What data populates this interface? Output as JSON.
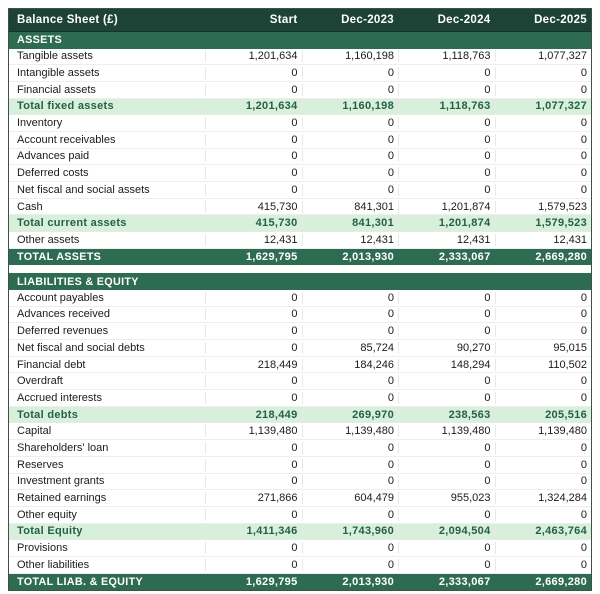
{
  "chart_data": {
    "type": "table",
    "title": "Balance Sheet (£)",
    "columns": [
      "Start",
      "Dec-2023",
      "Dec-2024",
      "Dec-2025"
    ],
    "sections": [
      {
        "label": "ASSETS",
        "rows": [
          {
            "label": "Tangible assets",
            "type": "normal",
            "values": [
              "1,201,634",
              "1,160,198",
              "1,118,763",
              "1,077,327"
            ]
          },
          {
            "label": "Intangible assets",
            "type": "normal",
            "values": [
              "0",
              "0",
              "0",
              "0"
            ]
          },
          {
            "label": "Financial assets",
            "type": "normal",
            "values": [
              "0",
              "0",
              "0",
              "0"
            ]
          },
          {
            "label": "Total fixed assets",
            "type": "subtotal",
            "values": [
              "1,201,634",
              "1,160,198",
              "1,118,763",
              "1,077,327"
            ]
          },
          {
            "label": "Inventory",
            "type": "normal",
            "values": [
              "0",
              "0",
              "0",
              "0"
            ]
          },
          {
            "label": "Account receivables",
            "type": "normal",
            "values": [
              "0",
              "0",
              "0",
              "0"
            ]
          },
          {
            "label": "Advances paid",
            "type": "normal",
            "values": [
              "0",
              "0",
              "0",
              "0"
            ]
          },
          {
            "label": "Deferred costs",
            "type": "normal",
            "values": [
              "0",
              "0",
              "0",
              "0"
            ]
          },
          {
            "label": "Net fiscal and social assets",
            "type": "normal",
            "values": [
              "0",
              "0",
              "0",
              "0"
            ]
          },
          {
            "label": "Cash",
            "type": "normal",
            "values": [
              "415,730",
              "841,301",
              "1,201,874",
              "1,579,523"
            ]
          },
          {
            "label": "Total current assets",
            "type": "subtotal",
            "values": [
              "415,730",
              "841,301",
              "1,201,874",
              "1,579,523"
            ]
          },
          {
            "label": "Other assets",
            "type": "normal",
            "values": [
              "12,431",
              "12,431",
              "12,431",
              "12,431"
            ]
          },
          {
            "label": "TOTAL ASSETS",
            "type": "grand_total",
            "values": [
              "1,629,795",
              "2,013,930",
              "2,333,067",
              "2,669,280"
            ]
          }
        ]
      },
      {
        "label": "LIABILITIES & EQUITY",
        "rows": [
          {
            "label": "Account payables",
            "type": "normal",
            "values": [
              "0",
              "0",
              "0",
              "0"
            ]
          },
          {
            "label": "Advances received",
            "type": "normal",
            "values": [
              "0",
              "0",
              "0",
              "0"
            ]
          },
          {
            "label": "Deferred revenues",
            "type": "normal",
            "values": [
              "0",
              "0",
              "0",
              "0"
            ]
          },
          {
            "label": "Net fiscal and social debts",
            "type": "normal",
            "values": [
              "0",
              "85,724",
              "90,270",
              "95,015"
            ]
          },
          {
            "label": "Financial debt",
            "type": "normal",
            "values": [
              "218,449",
              "184,246",
              "148,294",
              "110,502"
            ]
          },
          {
            "label": "Overdraft",
            "type": "normal",
            "values": [
              "0",
              "0",
              "0",
              "0"
            ]
          },
          {
            "label": "Accrued interests",
            "type": "normal",
            "values": [
              "0",
              "0",
              "0",
              "0"
            ]
          },
          {
            "label": "Total debts",
            "type": "subtotal",
            "values": [
              "218,449",
              "269,970",
              "238,563",
              "205,516"
            ]
          },
          {
            "label": "Capital",
            "type": "normal",
            "values": [
              "1,139,480",
              "1,139,480",
              "1,139,480",
              "1,139,480"
            ]
          },
          {
            "label": "Shareholders' loan",
            "type": "normal",
            "values": [
              "0",
              "0",
              "0",
              "0"
            ]
          },
          {
            "label": "Reserves",
            "type": "normal",
            "values": [
              "0",
              "0",
              "0",
              "0"
            ]
          },
          {
            "label": "Investment grants",
            "type": "normal",
            "values": [
              "0",
              "0",
              "0",
              "0"
            ]
          },
          {
            "label": "Retained earnings",
            "type": "normal",
            "values": [
              "271,866",
              "604,479",
              "955,023",
              "1,324,284"
            ]
          },
          {
            "label": "Other equity",
            "type": "normal",
            "values": [
              "0",
              "0",
              "0",
              "0"
            ]
          },
          {
            "label": "Total Equity",
            "type": "subtotal",
            "values": [
              "1,411,346",
              "1,743,960",
              "2,094,504",
              "2,463,764"
            ]
          },
          {
            "label": "Provisions",
            "type": "normal",
            "values": [
              "0",
              "0",
              "0",
              "0"
            ]
          },
          {
            "label": "Other liabilities",
            "type": "normal",
            "values": [
              "0",
              "0",
              "0",
              "0"
            ]
          },
          {
            "label": "TOTAL LIAB. & EQUITY",
            "type": "grand_total",
            "values": [
              "1,629,795",
              "2,013,930",
              "2,333,067",
              "2,669,280"
            ]
          }
        ]
      }
    ]
  },
  "colors": {
    "header_bg": "#1d4336",
    "section_bg": "#2e6b53",
    "grand_total_bg": "#2e6b53",
    "subtotal_bg": "#d8efdc",
    "subtotal_text": "#236147",
    "body_text": "#1b1b1b",
    "table_border": "#3c5247"
  }
}
